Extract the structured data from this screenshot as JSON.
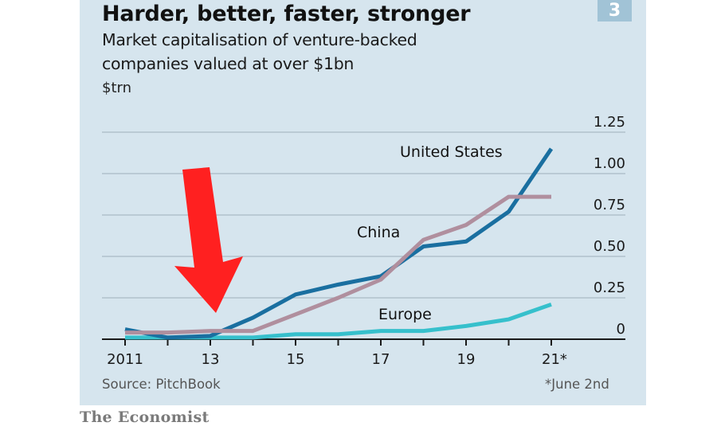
{
  "chart_data": {
    "type": "line",
    "title": "Harder, better, faster, stronger",
    "subtitle": [
      "Market capitalisation of venture-backed",
      "companies valued at over $1bn"
    ],
    "unit_label": "$trn",
    "chart_number": "3",
    "x": [
      2011,
      2012,
      2013,
      2014,
      2015,
      2016,
      2017,
      2018,
      2019,
      2020,
      2021
    ],
    "x_tick_labels": [
      {
        "year": 2011,
        "label": "2011"
      },
      {
        "year": 2013,
        "label": "13"
      },
      {
        "year": 2015,
        "label": "15"
      },
      {
        "year": 2017,
        "label": "17"
      },
      {
        "year": 2019,
        "label": "19"
      },
      {
        "year": 2021,
        "label": "21*"
      }
    ],
    "y_ticks": [
      0,
      0.25,
      0.5,
      0.75,
      1.0,
      1.25
    ],
    "y_tick_labels": [
      "0",
      "0.25",
      "0.50",
      "0.75",
      "1.00",
      "1.25"
    ],
    "ylim": [
      0,
      1.25
    ],
    "xlim": [
      2011,
      2021
    ],
    "grid": true,
    "y_axis_side": "right",
    "series": [
      {
        "name": "United States",
        "color": "#1a6fa0",
        "values": [
          0.06,
          0.01,
          0.02,
          0.13,
          0.27,
          0.33,
          0.38,
          0.56,
          0.59,
          0.77,
          1.15
        ]
      },
      {
        "name": "China",
        "color": "#b08f9e",
        "values": [
          0.04,
          0.04,
          0.05,
          0.05,
          0.15,
          0.25,
          0.36,
          0.6,
          0.69,
          0.86,
          0.86
        ]
      },
      {
        "name": "Europe",
        "color": "#36c0cc",
        "values": [
          0.01,
          0.01,
          0.01,
          0.01,
          0.03,
          0.03,
          0.05,
          0.05,
          0.08,
          0.12,
          0.21
        ]
      }
    ],
    "annotations": [
      "United States",
      "China",
      "Europe"
    ]
  },
  "source": "Source: PitchBook",
  "footnote": "*June 2nd",
  "brand": "The Economist",
  "overlay": {
    "arrow_color": "#ff2020",
    "arrow_target_year": 2013
  }
}
